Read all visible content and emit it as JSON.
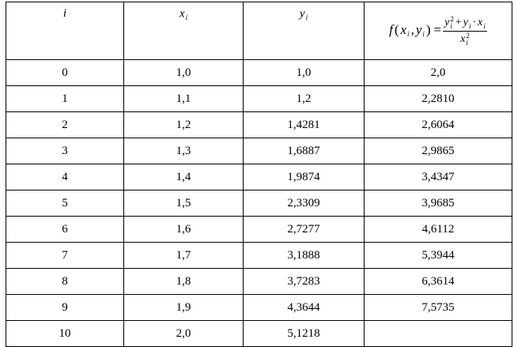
{
  "table": {
    "header": [
      {
        "t": "i"
      },
      {
        "t": "x",
        "sub": "i"
      },
      {
        "t": "y",
        "sub": "i"
      },
      {
        "lhs": [
          {
            "t": "f"
          },
          {
            "t": "("
          },
          {
            "t": "x",
            "sub": "i"
          },
          {
            "t": ","
          },
          {
            "t": "y",
            "sub": "i"
          },
          {
            "t": ")"
          },
          {
            "t": "="
          }
        ],
        "num": [
          {
            "t": "y",
            "sub": "i",
            "sup": "2"
          },
          {
            "t": "+"
          },
          {
            "t": "y",
            "sub": "i"
          },
          {
            "t": "·"
          },
          {
            "t": "x",
            "sub": "i"
          }
        ],
        "den": [
          {
            "t": "x",
            "sub": "i",
            "sup": "2"
          }
        ]
      }
    ],
    "rows": [
      [
        "0",
        "1,0",
        "1,0",
        "2,0"
      ],
      [
        "1",
        "1,1",
        "1,2",
        "2,2810"
      ],
      [
        "2",
        "1,2",
        "1,4281",
        "2,6064"
      ],
      [
        "3",
        "1,3",
        "1,6887",
        "2,9865"
      ],
      [
        "4",
        "1,4",
        "1,9874",
        "3,4347"
      ],
      [
        "5",
        "1,5",
        "2,3309",
        "3,9685"
      ],
      [
        "6",
        "1,6",
        "2,7277",
        "4,6112"
      ],
      [
        "7",
        "1,7",
        "3,1888",
        "5,3944"
      ],
      [
        "8",
        "1,8",
        "3,7283",
        "6,3614"
      ],
      [
        "9",
        "1,9",
        "4,3644",
        "7,5735"
      ],
      [
        "10",
        "2,0",
        "5,1218"
      ]
    ]
  }
}
